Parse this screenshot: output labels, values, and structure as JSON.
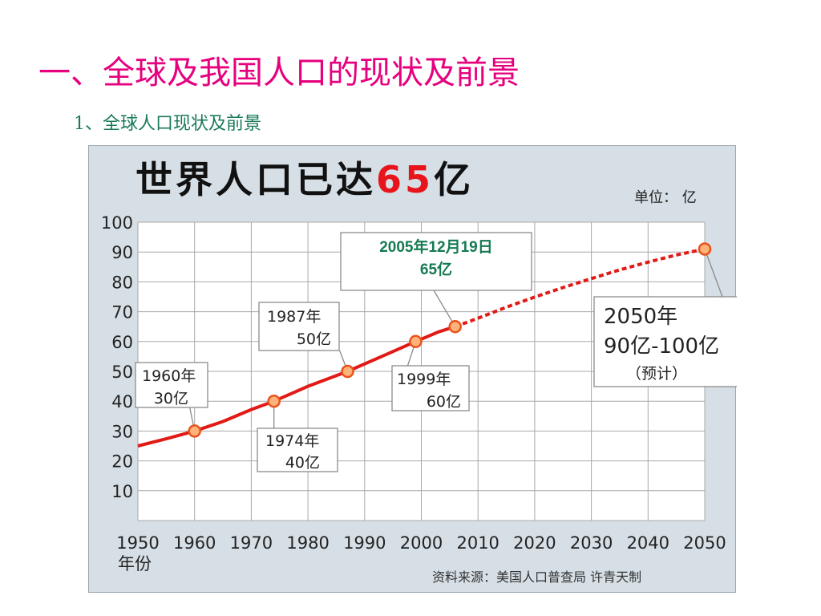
{
  "slide": {
    "title": "一、全球及我国人口的现状及前景",
    "subtitle": "1、全球人口现状及前景"
  },
  "colors": {
    "title": "#e6007e",
    "subtitle": "#1a7a5a",
    "panel": "#d6dfe6",
    "line": "#e11a16",
    "marker_fill": "#ffb27a",
    "headline_number": "#e8141b",
    "callout_green": "#157a52"
  },
  "chart_data": {
    "type": "line",
    "title_prefix": "世界人口已达",
    "title_number": "65",
    "title_suffix": "亿",
    "unit_label": "单位：  亿",
    "x_unit_label": "年份",
    "source": "资料来源：美国人口普查局  许青天制",
    "xlim": [
      1950,
      2050
    ],
    "ylim": [
      0,
      100
    ],
    "x_ticks": [
      "1950",
      "1960",
      "1970",
      "1980",
      "1990",
      "2000",
      "2010",
      "2020",
      "2030",
      "2040",
      "2050"
    ],
    "y_ticks": [
      "100",
      "90",
      "80",
      "70",
      "60",
      "50",
      "40",
      "30",
      "20",
      "10"
    ],
    "grid": true,
    "series": [
      {
        "style": "solid",
        "x": [
          1950,
          1955,
          1960,
          1965,
          1970,
          1974,
          1980,
          1987,
          1993,
          1999,
          2003,
          2005.97
        ],
        "y": [
          25,
          27.4,
          30,
          33.2,
          37.2,
          40,
          45,
          50,
          55,
          60,
          63.2,
          65
        ]
      },
      {
        "style": "dashed",
        "x": [
          2005.97,
          2010,
          2015,
          2020,
          2025,
          2030,
          2035,
          2040,
          2045,
          2050
        ],
        "y": [
          65,
          67.8,
          71.5,
          74.9,
          78.1,
          81.1,
          84,
          86.6,
          89,
          91
        ]
      }
    ],
    "points": [
      {
        "x": 1960,
        "y": 30
      },
      {
        "x": 1974,
        "y": 40
      },
      {
        "x": 1987,
        "y": 50
      },
      {
        "x": 1999,
        "y": 60
      },
      {
        "x": 2005.97,
        "y": 65
      },
      {
        "x": 2050,
        "y": 91
      }
    ],
    "annotations": [
      {
        "lines": [
          "1960年",
          "30亿"
        ]
      },
      {
        "lines": [
          "1974年",
          "40亿"
        ]
      },
      {
        "lines": [
          "1987年",
          "50亿"
        ]
      },
      {
        "lines": [
          "1999年",
          "60亿"
        ]
      },
      {
        "lines": [
          "2005年12月19日",
          "65亿"
        ]
      },
      {
        "lines": [
          "2050年",
          "90亿-100亿",
          "（预计）"
        ]
      }
    ]
  }
}
